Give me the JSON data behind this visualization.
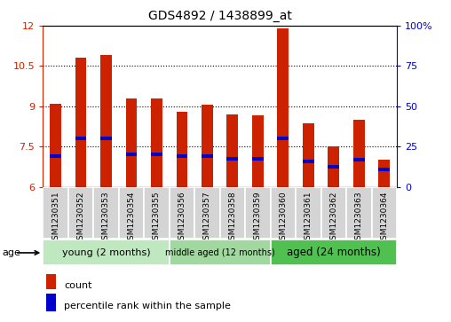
{
  "title": "GDS4892 / 1438899_at",
  "samples": [
    "GSM1230351",
    "GSM1230352",
    "GSM1230353",
    "GSM1230354",
    "GSM1230355",
    "GSM1230356",
    "GSM1230357",
    "GSM1230358",
    "GSM1230359",
    "GSM1230360",
    "GSM1230361",
    "GSM1230362",
    "GSM1230363",
    "GSM1230364"
  ],
  "count_values": [
    9.1,
    10.8,
    10.9,
    9.3,
    9.3,
    8.8,
    9.05,
    8.7,
    8.65,
    11.9,
    8.35,
    7.5,
    8.5,
    7.0
  ],
  "percentile_values": [
    7.15,
    7.8,
    7.8,
    7.2,
    7.2,
    7.15,
    7.15,
    7.05,
    7.05,
    7.8,
    6.95,
    6.75,
    7.0,
    6.65
  ],
  "ymin": 6,
  "ymax": 12,
  "yticks": [
    6,
    7.5,
    9,
    10.5,
    12
  ],
  "ytick_labels": [
    "6",
    "7.5",
    "9",
    "10.5",
    "12"
  ],
  "right_ytick_labels": [
    "0",
    "25",
    "50",
    "75",
    "100%"
  ],
  "bar_color": "#cc2200",
  "percentile_color": "#0000cc",
  "groups": [
    {
      "label": "young (2 months)",
      "start": 0,
      "end": 5
    },
    {
      "label": "middle aged (12 months)",
      "start": 5,
      "end": 9
    },
    {
      "label": "aged (24 months)",
      "start": 9,
      "end": 14
    }
  ],
  "group_colors": [
    "#c0e8c0",
    "#a0d8a0",
    "#50c050"
  ],
  "bar_width": 0.45,
  "cell_color": "#d4d4d4",
  "cell_edge": "#ffffff"
}
